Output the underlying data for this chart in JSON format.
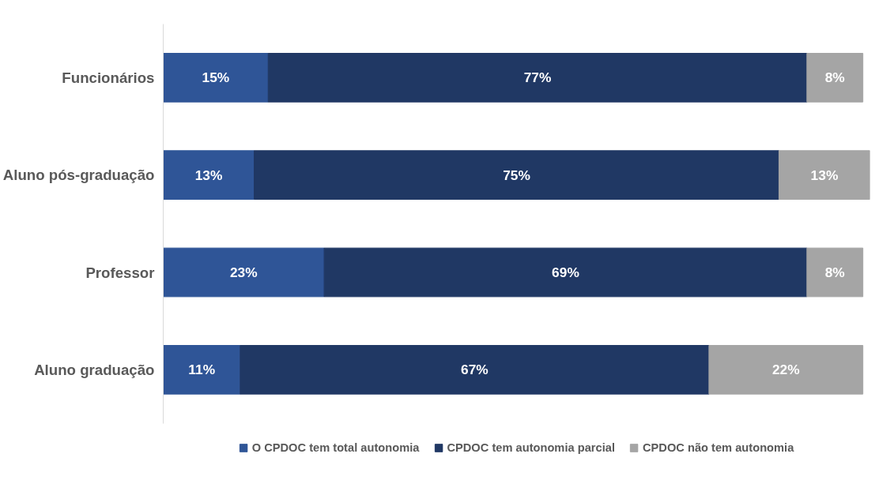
{
  "chart_data": {
    "type": "bar",
    "orientation": "horizontal",
    "stacked": true,
    "legend": "bottom",
    "grid": false,
    "categories": [
      "Funcionários",
      "Aluno pós-graduação",
      "Professor",
      "Aluno graduação"
    ],
    "series": [
      {
        "name": "O CPDOC tem total autonomia",
        "color": "#2f5597",
        "values": [
          15,
          13,
          23,
          11
        ],
        "value_labels": [
          "15%",
          "13%",
          "23%",
          "11%"
        ]
      },
      {
        "name": "CPDOC tem autonomia parcial",
        "color": "#203864",
        "values": [
          77,
          75,
          69,
          67
        ],
        "value_labels": [
          "77%",
          "75%",
          "69%",
          "67%"
        ]
      },
      {
        "name": "CPDOC não tem autonomia",
        "color": "#a5a5a5",
        "values": [
          8,
          13,
          8,
          22
        ],
        "value_labels": [
          "8%",
          "13%",
          "8%",
          "22%"
        ]
      }
    ]
  }
}
